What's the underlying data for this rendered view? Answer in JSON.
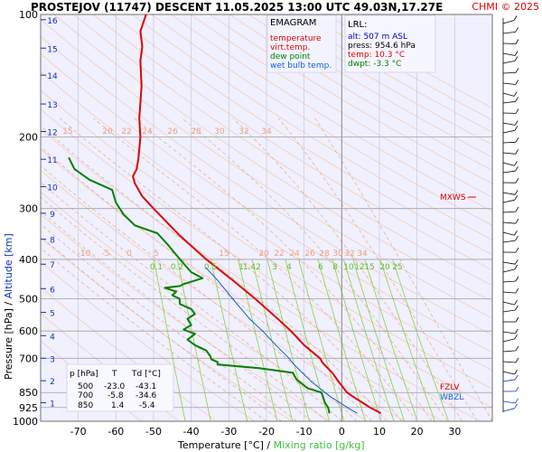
{
  "header": {
    "title": "PROSTEJOV (11747)   DESCENT   11.05.2025 13:00 UTC  49.03N,17.27E",
    "credit": "CHMI © 2025"
  },
  "legend": {
    "title": "EMAGRAM",
    "items": [
      {
        "label": "temperature",
        "color": "#e00000"
      },
      {
        "label": "virt.temp.",
        "color": "#e00000"
      },
      {
        "label": "dew point",
        "color": "#008000"
      },
      {
        "label": "wet bulb temp.",
        "color": "#1060d0"
      }
    ]
  },
  "lrl": {
    "title": "LRL:",
    "lines": [
      {
        "text": "alt: 507 m ASL",
        "color": "#0000c0"
      },
      {
        "text": "press: 954.6 hPa",
        "color": "#000000"
      },
      {
        "text": "temp: 10.3 °C",
        "color": "#e00000"
      },
      {
        "text": "dwpt: -3.3 °C",
        "color": "#008000"
      }
    ]
  },
  "axes": {
    "ylabel_black": "Pressure [hPa]  /  ",
    "ylabel_blue": "Altitude [km]",
    "xlabel_black": "Temperature [°C]  /  ",
    "xlabel_green": "Mixing ratio [g/kg]"
  },
  "level_labels": {
    "mxws": "MXWS",
    "fzlv": "FZLV",
    "wbzl": "WBZL"
  },
  "table": {
    "headers": [
      "p [hPa]",
      "T",
      "Td [°C]"
    ],
    "rows": [
      [
        "500",
        "-23.0",
        "-43.1"
      ],
      [
        "700",
        "-5.8",
        "-34.6"
      ],
      [
        "850",
        "1.4",
        "-5.4"
      ]
    ]
  },
  "chart_data": {
    "type": "line",
    "x_axis": {
      "label": "Temperature [°C]",
      "range": [
        -80,
        40
      ],
      "ticks": [
        -70,
        -60,
        -50,
        -40,
        -30,
        -20,
        -10,
        0,
        10,
        20,
        30
      ]
    },
    "y_axis": {
      "label": "Pressure [hPa]",
      "scale": "log",
      "range": [
        1000,
        100
      ],
      "ticks": [
        1000,
        925,
        850,
        700,
        600,
        500,
        400,
        300,
        200,
        100
      ]
    },
    "altitude_ticks_km": [
      1,
      2,
      3,
      4,
      5,
      6,
      7,
      8,
      9,
      10,
      11,
      12,
      13,
      14,
      15,
      16
    ],
    "altitude_pressures": [
      900,
      795,
      700,
      616,
      540,
      472,
      411,
      357,
      308,
      265,
      227,
      194,
      166,
      141,
      121,
      103
    ],
    "mixing_ratio_labels": [
      "0.1",
      "0.2",
      "0.5",
      "1",
      "1.4",
      "2",
      "3",
      "4",
      "6",
      "8",
      "10",
      "12",
      "15",
      "20",
      "25"
    ],
    "mixing_ratio_values": [
      0.1,
      0.2,
      0.5,
      1,
      1.4,
      2,
      3,
      4,
      6,
      8,
      10,
      12,
      15,
      20,
      25
    ],
    "adiabat_labels_lower": [
      "-10",
      "-5",
      "0",
      "5",
      "15",
      "20",
      "22",
      "24",
      "26",
      "28",
      "30",
      "32",
      "34"
    ],
    "adiabat_labels_upper": [
      "15",
      "20",
      "22",
      "24",
      "26",
      "28",
      "30",
      "32",
      "34"
    ],
    "series": [
      {
        "name": "temperature",
        "color": "#e00000",
        "points": [
          [
            954.6,
            10.3
          ],
          [
            925,
            7.5
          ],
          [
            900,
            5.5
          ],
          [
            870,
            3.0
          ],
          [
            850,
            1.4
          ],
          [
            800,
            -0.8
          ],
          [
            760,
            -2.5
          ],
          [
            720,
            -5.0
          ],
          [
            700,
            -5.8
          ],
          [
            650,
            -10.0
          ],
          [
            600,
            -13.5
          ],
          [
            560,
            -17.0
          ],
          [
            500,
            -23.0
          ],
          [
            450,
            -29.0
          ],
          [
            400,
            -36.0
          ],
          [
            350,
            -43.0
          ],
          [
            300,
            -50.0
          ],
          [
            280,
            -53.0
          ],
          [
            260,
            -55.0
          ],
          [
            250,
            -55.5
          ],
          [
            240,
            -54.5
          ],
          [
            225,
            -54.0
          ],
          [
            200,
            -53.5
          ],
          [
            180,
            -53.8
          ],
          [
            150,
            -53.2
          ],
          [
            130,
            -53.5
          ],
          [
            120,
            -53.0
          ],
          [
            110,
            -53.5
          ],
          [
            100,
            -52.0
          ]
        ]
      },
      {
        "name": "dew point",
        "color": "#008000",
        "points": [
          [
            954.6,
            -3.3
          ],
          [
            925,
            -3.6
          ],
          [
            900,
            -4.5
          ],
          [
            870,
            -5.0
          ],
          [
            850,
            -5.4
          ],
          [
            830,
            -9.0
          ],
          [
            810,
            -10.5
          ],
          [
            790,
            -12.0
          ],
          [
            760,
            -13.0
          ],
          [
            740,
            -22.0
          ],
          [
            725,
            -33.0
          ],
          [
            715,
            -33.0
          ],
          [
            705,
            -34.6
          ],
          [
            690,
            -35.0
          ],
          [
            670,
            -36.0
          ],
          [
            650,
            -39.0
          ],
          [
            630,
            -41.0
          ],
          [
            610,
            -39.0
          ],
          [
            595,
            -42.0
          ],
          [
            580,
            -40.0
          ],
          [
            560,
            -41.0
          ],
          [
            545,
            -39.0
          ],
          [
            530,
            -40.0
          ],
          [
            515,
            -43.0
          ],
          [
            500,
            -43.1
          ],
          [
            490,
            -45.0
          ],
          [
            480,
            -44.0
          ],
          [
            470,
            -47.0
          ],
          [
            465,
            -43.0
          ],
          [
            460,
            -42.0
          ],
          [
            445,
            -37.0
          ],
          [
            430,
            -40.0
          ],
          [
            400,
            -43.0
          ],
          [
            370,
            -46.0
          ],
          [
            345,
            -49.0
          ],
          [
            330,
            -55.0
          ],
          [
            310,
            -58.0
          ],
          [
            290,
            -60.0
          ],
          [
            270,
            -61.0
          ],
          [
            255,
            -67.0
          ],
          [
            240,
            -71.0
          ],
          [
            230,
            -72.0
          ],
          [
            225,
            -72.5
          ]
        ]
      },
      {
        "name": "wet bulb temp.",
        "color": "#1060d0",
        "points": [
          [
            954.6,
            4.0
          ],
          [
            925,
            1.5
          ],
          [
            900,
            -0.5
          ],
          [
            870,
            -3.0
          ],
          [
            850,
            -4.5
          ],
          [
            800,
            -8.0
          ],
          [
            760,
            -10.5
          ],
          [
            720,
            -13.0
          ],
          [
            700,
            -14.0
          ],
          [
            650,
            -17.5
          ],
          [
            600,
            -21.0
          ],
          [
            560,
            -24.5
          ],
          [
            500,
            -29.0
          ],
          [
            450,
            -33.0
          ],
          [
            420,
            -36.0
          ]
        ]
      }
    ]
  }
}
